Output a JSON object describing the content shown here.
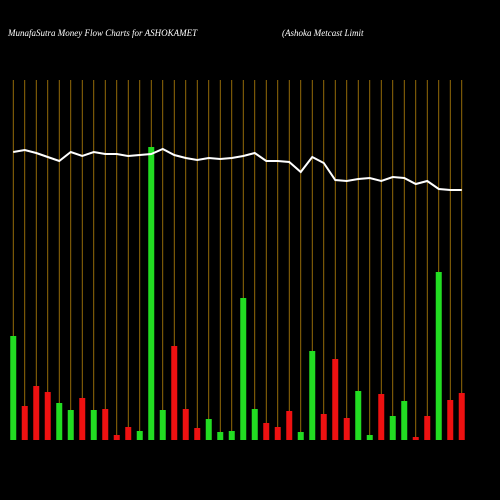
{
  "chart_data": {
    "type": "bar",
    "title": "MunafaSutra  Money Flow  Charts for ASHOKAMET",
    "subtitle": "(Ashoka  Metcast Limit",
    "background": "#000000",
    "grid_color": "#b8860b",
    "categories": [
      null,
      null,
      null,
      null,
      null,
      null,
      null,
      null,
      null,
      null,
      null,
      null,
      null,
      null,
      null,
      null,
      null,
      null,
      null,
      null,
      null,
      null,
      null,
      null,
      null,
      null,
      null,
      null,
      null,
      null,
      null,
      null,
      null,
      null,
      null,
      null,
      null,
      null,
      null,
      null
    ],
    "ylim": [
      0,
      360
    ],
    "series": [
      {
        "type": "bar",
        "values": [
          104,
          34,
          54,
          48,
          37,
          30,
          42,
          30,
          31,
          5,
          13,
          9,
          293,
          30,
          94,
          31,
          12,
          21,
          8,
          9,
          142,
          31,
          17,
          13,
          29,
          8,
          89,
          26,
          81,
          22,
          49,
          5,
          46,
          24,
          39,
          3,
          24,
          168,
          40,
          47
        ],
        "colors": [
          "#22dd22",
          "#ee1111",
          "#ee1111",
          "#ee1111",
          "#22dd22",
          "#22dd22",
          "#ee1111",
          "#22dd22",
          "#ee1111",
          "#ee1111",
          "#ee1111",
          "#22dd22",
          "#22dd22",
          "#22dd22",
          "#ee1111",
          "#ee1111",
          "#ee1111",
          "#22dd22",
          "#22dd22",
          "#22dd22",
          "#22dd22",
          "#22dd22",
          "#ee1111",
          "#ee1111",
          "#ee1111",
          "#22dd22",
          "#22dd22",
          "#ee1111",
          "#ee1111",
          "#ee1111",
          "#22dd22",
          "#22dd22",
          "#ee1111",
          "#22dd22",
          "#22dd22",
          "#ee1111",
          "#ee1111",
          "#22dd22",
          "#ee1111",
          "#ee1111"
        ]
      },
      {
        "type": "line",
        "color": "#ffffff",
        "values": [
          288,
          290,
          287,
          283,
          279,
          288,
          284,
          288,
          286,
          286,
          284,
          285,
          286,
          291,
          285,
          282,
          280,
          282,
          281,
          282,
          284,
          287,
          279,
          279,
          278,
          268,
          283,
          277,
          260,
          259,
          261,
          262,
          259,
          263,
          262,
          256,
          259,
          251,
          250,
          250
        ]
      }
    ]
  }
}
